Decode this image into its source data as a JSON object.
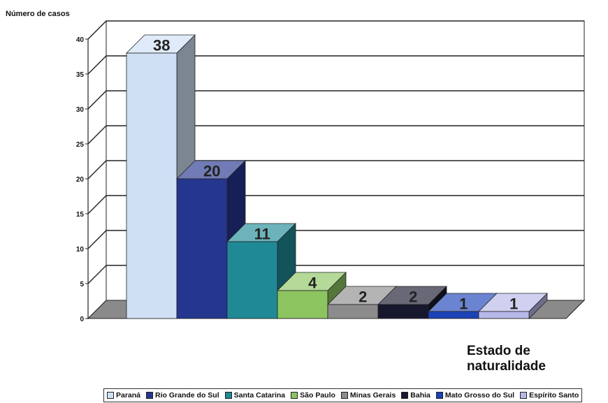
{
  "chart_data": {
    "type": "bar",
    "ylabel": "Número de casos",
    "xlabel": "Estado de naturalidade",
    "ylim": [
      0,
      40
    ],
    "yticks": [
      "0",
      "5",
      "10",
      "15",
      "20",
      "25",
      "30",
      "35",
      "40"
    ],
    "grid": true,
    "legend_position": "bottom",
    "categories": [
      "Paraná",
      "Rio Grande do Sul",
      "Santa Catarina",
      "São Paulo",
      "Minas Gerais",
      "Bahia",
      "Mato Grosso do Sul",
      "Espírito Santo"
    ],
    "values": [
      38,
      20,
      11,
      4,
      2,
      2,
      1,
      1
    ],
    "data_labels": [
      "38",
      "20",
      "11",
      "4",
      "2",
      "2",
      "1",
      "1"
    ],
    "colors": [
      "#cfe0f5",
      "#25368f",
      "#1f8a96",
      "#8cc460",
      "#8c8c8c",
      "#17172e",
      "#1c42b8",
      "#b7b7ea"
    ]
  }
}
